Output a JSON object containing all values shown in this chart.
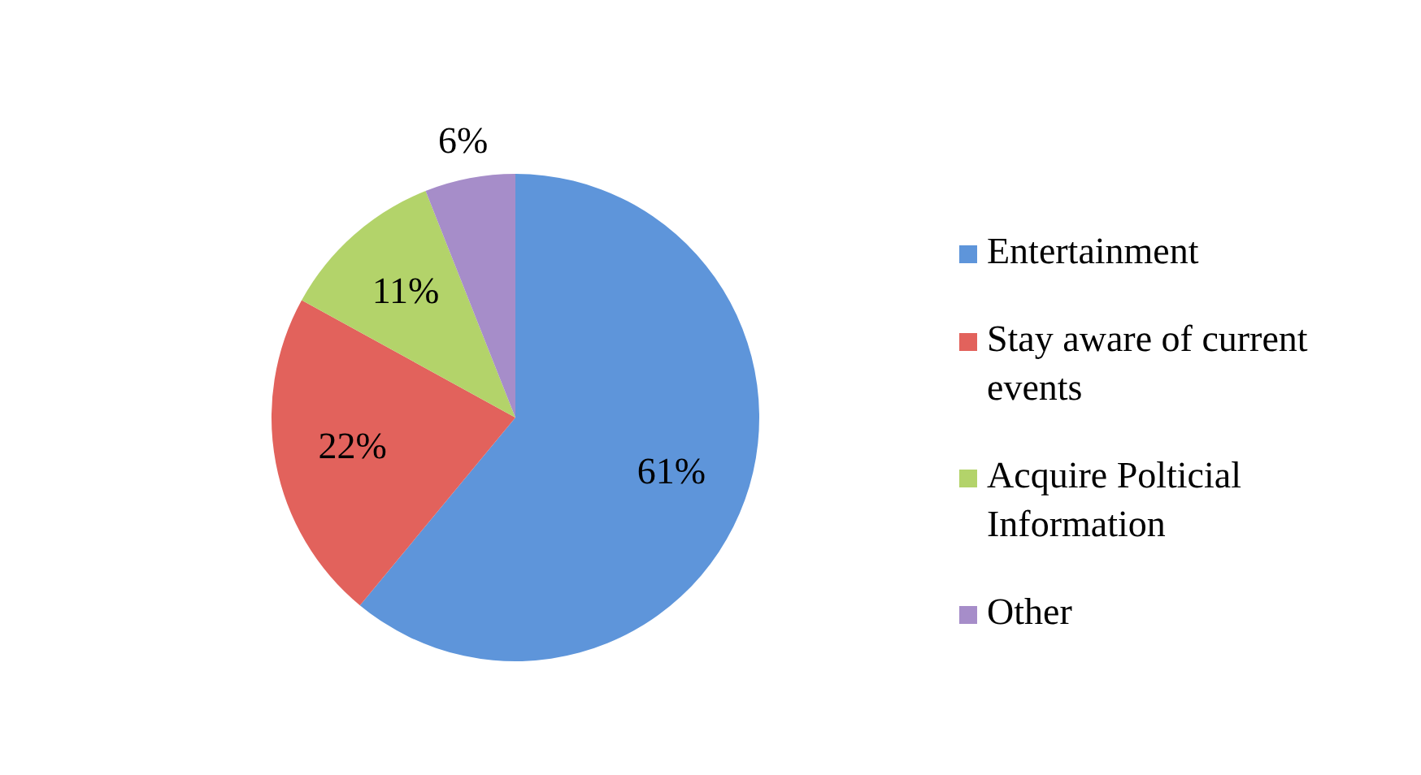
{
  "chart_data": {
    "type": "pie",
    "categories": [
      "Entertainment",
      "Stay aware of current events",
      "Acquire Polticial Information",
      "Other"
    ],
    "values": [
      61,
      22,
      11,
      6
    ],
    "colors": [
      "#5e95da",
      "#e2625c",
      "#b3d36a",
      "#a68dc9"
    ],
    "value_labels": [
      "61%",
      "22%",
      "11%",
      "6%"
    ],
    "legend": "right"
  }
}
